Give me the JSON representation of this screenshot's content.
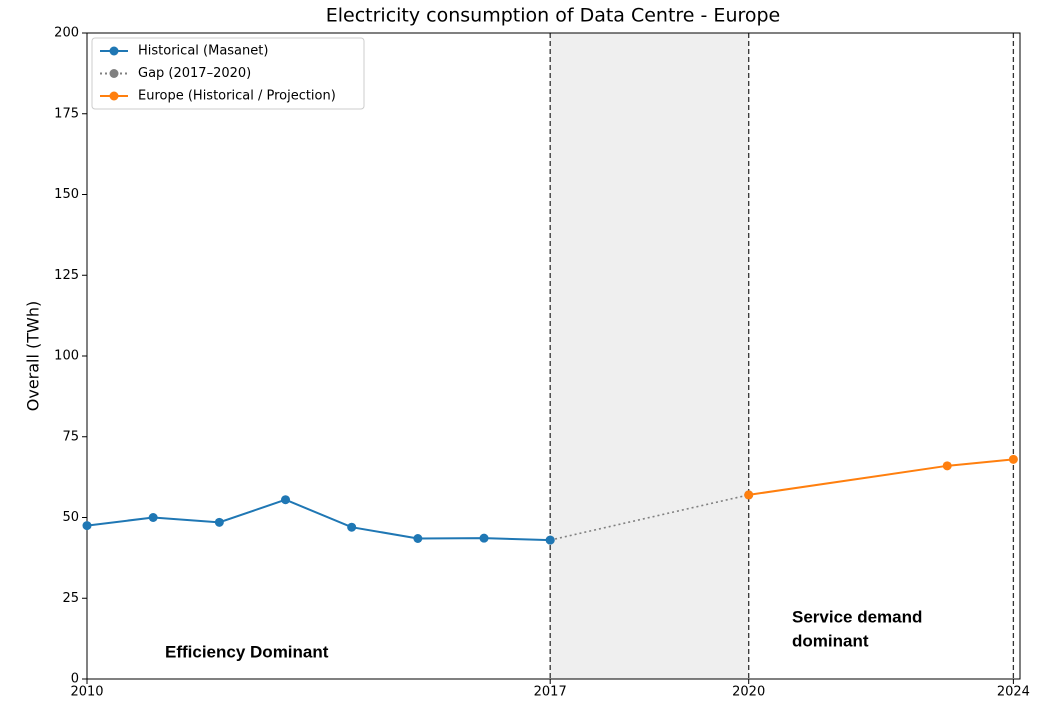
{
  "chart_data": {
    "type": "line",
    "title": "Electricity consumption of Data Centre - Europe",
    "y_label": "Overall (TWh)",
    "xlim": [
      2010,
      2024.1
    ],
    "ylim": [
      0,
      200
    ],
    "xticks": [
      2010,
      2017,
      2020,
      2024
    ],
    "yticks": [
      0,
      25,
      50,
      75,
      100,
      125,
      150,
      175,
      200
    ],
    "legend": "upper left",
    "vlines": [
      2017,
      2020,
      2024
    ],
    "shade": [
      2017,
      2020
    ],
    "series": [
      {
        "name": "Historical (Masanet)",
        "color": "#1f77b4",
        "style": "solid",
        "x": [
          2010,
          2011,
          2012,
          2013,
          2014,
          2015,
          2016,
          2017
        ],
        "values": [
          47.5,
          50,
          48.5,
          55.5,
          47,
          43.5,
          43.6,
          43
        ]
      },
      {
        "name": "Gap (2017–2020)",
        "color": "#808080",
        "style": "dotted",
        "x": [
          2017,
          2020
        ],
        "values": [
          43,
          57
        ]
      },
      {
        "name": "Europe (Historical / Projection)",
        "color": "#ff7f0e",
        "style": "solid",
        "x": [
          2020,
          2023,
          2024
        ],
        "values": [
          57,
          66,
          68
        ]
      }
    ],
    "annotations": [
      "Efficiency Dominant",
      "Service demand",
      "dominant"
    ]
  }
}
